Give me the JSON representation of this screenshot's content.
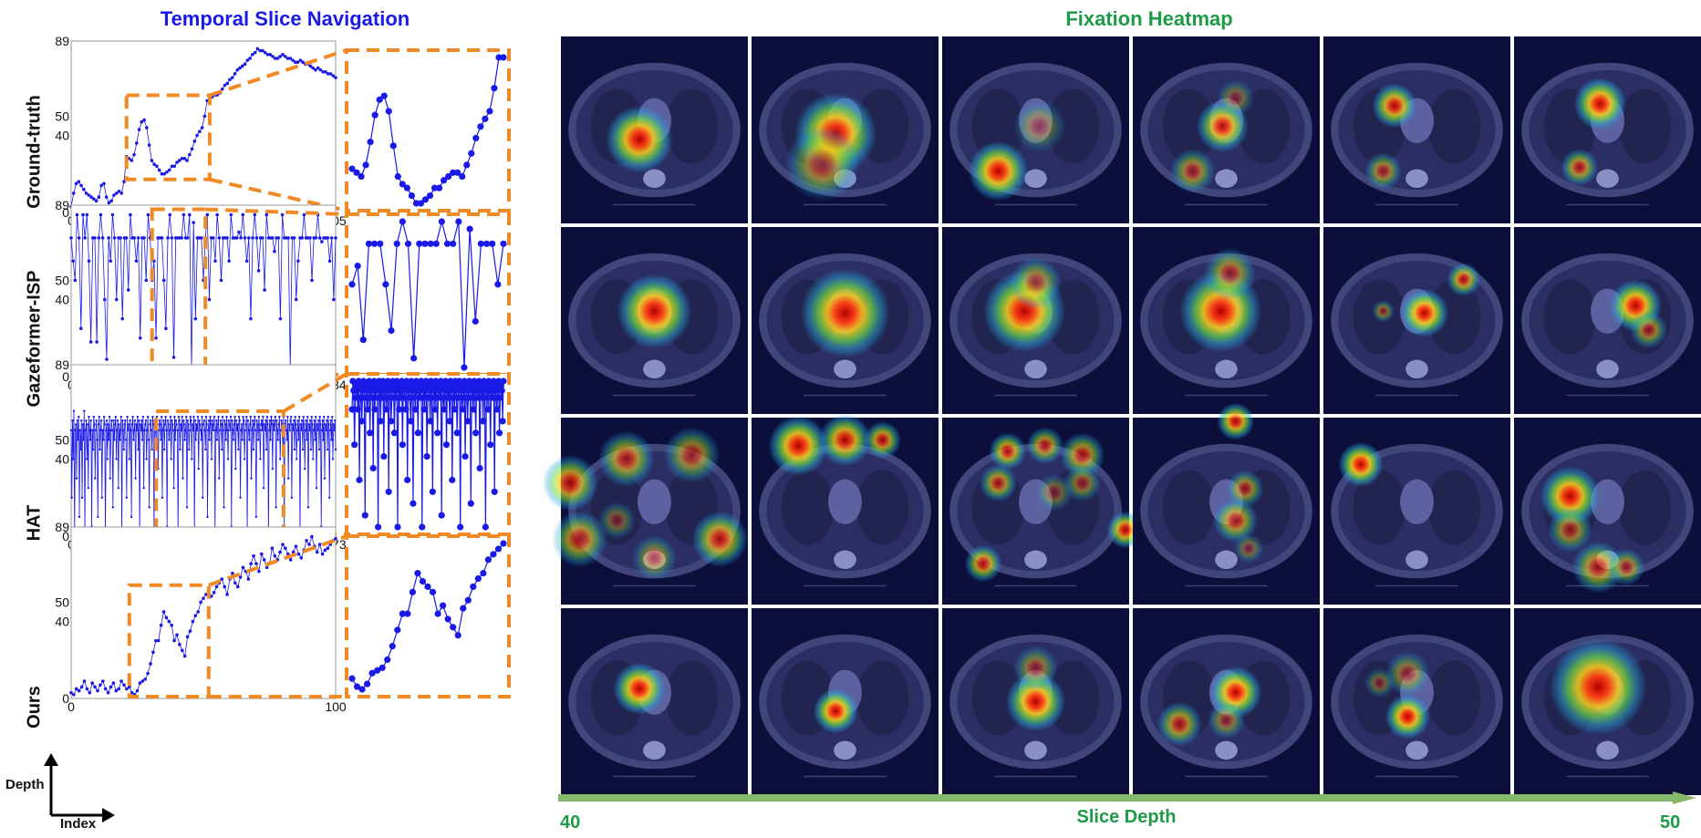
{
  "titles": {
    "left": "Temporal Slice Navigation",
    "right": "Fixation Heatmap"
  },
  "axis_corner": {
    "y_label": "Depth",
    "x_label": "Index"
  },
  "slice_depth": {
    "label": "Slice Depth",
    "start": "40",
    "end": "50"
  },
  "colors": {
    "title_left": "#1a1ae6",
    "title_right": "#1e9b46",
    "series": "#1a1ae6",
    "zoom_box": "#f08a24",
    "depth_arrow": "#86b86a",
    "ct_bg": "#0b0f3a"
  },
  "chart_data": [
    {
      "type": "line",
      "method": "Ground-truth",
      "yticks": [
        "0",
        "40",
        "50",
        "89"
      ],
      "xticks": [
        "0",
        "105"
      ],
      "ylim": [
        0,
        89
      ],
      "xlim": [
        0,
        105
      ],
      "zoom_range": [
        22,
        55
      ],
      "values": [
        3,
        10,
        15,
        16,
        14,
        12,
        10,
        9,
        8,
        7,
        6,
        8,
        14,
        15,
        8,
        5,
        6,
        9,
        10,
        11,
        10,
        16,
        29,
        28,
        27,
        30,
        36,
        43,
        47,
        48,
        44,
        35,
        27,
        25,
        24,
        22,
        20,
        20,
        21,
        22,
        24,
        24,
        26,
        27,
        28,
        28,
        27,
        30,
        33,
        37,
        40,
        42,
        44,
        50,
        58,
        58,
        60,
        61,
        61,
        62,
        64,
        66,
        67,
        69,
        70,
        72,
        74,
        75,
        76,
        77,
        79,
        80,
        82,
        83,
        85,
        84,
        84,
        83,
        82,
        82,
        81,
        80,
        80,
        81,
        82,
        81,
        80,
        80,
        79,
        78,
        78,
        79,
        78,
        77,
        77,
        76,
        75,
        74,
        75,
        74,
        73,
        73,
        72,
        72,
        71,
        70
      ]
    },
    {
      "type": "line",
      "method": "Gazeformer-ISP",
      "yticks": [
        "0",
        "40",
        "50",
        "89"
      ],
      "xticks": [
        "0",
        "134"
      ],
      "ylim": [
        0,
        89
      ],
      "xlim": [
        0,
        134
      ],
      "zoom_range": [
        41,
        68
      ],
      "values": [
        72,
        60,
        50,
        84,
        72,
        25,
        84,
        72,
        84,
        60,
        18,
        72,
        72,
        18,
        72,
        84,
        72,
        40,
        9,
        72,
        60,
        84,
        72,
        40,
        72,
        72,
        30,
        72,
        72,
        45,
        84,
        72,
        72,
        60,
        72,
        20,
        72,
        72,
        50,
        84,
        72,
        50,
        60,
        20,
        72,
        72,
        72,
        50,
        25,
        72,
        84,
        72,
        10,
        72,
        72,
        72,
        72,
        84,
        72,
        72,
        84,
        5,
        80,
        30,
        72,
        72,
        72,
        50,
        72,
        84,
        40,
        72,
        72,
        60,
        84,
        72,
        50,
        72,
        72,
        72,
        60,
        84,
        72,
        72,
        72,
        75,
        72,
        84,
        72,
        60,
        72,
        30,
        72,
        84,
        72,
        55,
        72,
        72,
        45,
        84,
        72,
        72,
        72,
        65,
        72,
        72,
        30,
        84,
        72,
        72,
        72,
        5,
        72,
        72,
        40,
        60,
        72,
        72,
        84,
        72,
        72,
        72,
        50,
        72,
        72,
        84,
        72,
        70,
        72,
        72,
        72,
        60,
        72,
        40,
        72
      ]
    },
    {
      "type": "line",
      "method": "HAT",
      "yticks": [
        "0",
        "40",
        "50",
        "89"
      ],
      "xticks": [
        "0",
        "373"
      ],
      "ylim": [
        0,
        89
      ],
      "xlim": [
        0,
        373
      ],
      "zoom_range": [
        120,
        300
      ],
      "values": [
        55,
        20,
        60,
        40,
        65,
        0,
        55,
        58,
        30,
        60,
        50,
        62,
        10,
        55,
        45,
        60,
        20,
        58,
        50,
        65,
        0,
        55,
        60,
        40,
        58,
        25,
        62,
        55,
        50,
        60,
        5,
        55,
        45,
        62,
        58,
        30,
        55,
        60,
        50,
        10,
        58,
        62,
        45,
        55,
        60,
        20,
        55,
        50,
        62,
        58,
        0,
        55,
        60,
        40,
        58,
        50,
        62,
        30,
        55,
        60,
        55,
        15,
        60,
        50,
        58,
        62,
        40,
        55,
        60,
        25,
        58,
        50,
        55,
        62,
        0,
        60,
        55,
        45,
        58,
        60,
        50,
        20,
        62,
        55,
        58,
        40,
        60,
        55,
        10,
        58,
        62,
        50,
        55,
        60,
        30,
        58,
        55,
        62,
        45,
        60,
        0,
        58,
        55,
        60,
        50,
        62,
        25,
        55,
        58,
        60,
        40,
        55,
        62,
        50,
        15,
        58,
        60,
        55,
        45,
        62,
        58,
        0,
        60,
        55,
        50,
        62,
        58,
        35,
        55,
        60,
        58,
        50,
        62,
        20,
        55,
        60,
        45,
        58,
        62,
        55,
        5,
        60,
        58,
        50,
        55,
        62,
        40,
        60,
        58,
        55,
        25,
        62,
        50,
        60,
        58,
        55,
        0,
        62,
        60,
        45,
        58,
        55,
        62,
        30,
        60,
        58,
        50,
        55,
        62,
        15,
        60,
        58,
        45,
        55,
        62,
        60,
        40,
        58,
        55,
        62,
        0,
        60,
        50,
        58,
        55,
        62,
        35,
        60,
        58,
        55,
        50,
        62,
        20,
        58,
        60,
        55,
        45,
        62,
        58,
        10,
        55,
        60,
        50,
        62,
        58,
        40,
        60,
        55,
        58,
        62,
        0,
        55,
        60,
        50,
        58,
        62,
        30,
        55,
        60,
        58,
        45,
        62,
        55,
        15,
        60,
        58,
        50,
        62,
        55,
        40,
        60,
        58,
        55,
        62,
        5,
        60,
        55,
        50,
        58,
        62,
        35,
        60,
        55,
        58,
        45,
        62,
        60,
        20,
        55,
        58,
        50,
        62,
        60,
        40,
        55,
        58,
        62,
        0,
        60,
        55,
        50,
        58,
        62,
        30,
        55,
        60,
        45,
        58,
        62,
        55,
        10,
        60,
        58,
        50,
        62,
        55,
        40,
        58,
        60,
        55,
        62,
        25,
        58,
        55,
        60,
        45,
        62,
        58,
        0,
        55,
        60,
        50,
        62,
        58,
        35,
        60,
        55,
        58,
        62,
        15,
        60,
        55,
        50,
        58,
        62,
        40,
        55,
        60,
        58,
        45,
        62,
        5,
        58,
        60,
        55,
        50,
        62,
        30,
        58,
        55,
        60,
        62,
        20,
        58,
        55,
        60,
        45,
        62,
        58,
        40,
        55,
        60,
        50,
        62,
        0,
        58,
        55,
        60,
        45,
        62,
        58,
        35,
        55,
        60,
        50,
        62,
        15,
        58,
        55,
        60,
        45,
        62,
        58,
        40,
        55,
        60,
        50,
        62,
        25,
        58,
        55,
        60,
        45,
        62,
        58,
        5,
        55,
        60,
        50,
        62,
        30,
        58,
        55,
        60,
        45,
        62,
        58,
        20,
        55,
        60,
        50,
        62,
        40,
        58,
        55,
        60,
        45
      ]
    },
    {
      "type": "line",
      "method": "Ours",
      "yticks": [
        "0",
        "40",
        "50",
        "89"
      ],
      "xticks": [
        "0",
        "100"
      ],
      "ylim": [
        0,
        89
      ],
      "xlim": [
        0,
        100
      ],
      "zoom_range": [
        22,
        52
      ],
      "values": [
        3,
        2,
        5,
        4,
        6,
        9,
        5,
        3,
        8,
        6,
        4,
        7,
        9,
        5,
        3,
        6,
        8,
        4,
        5,
        9,
        7,
        5,
        6,
        3,
        2,
        4,
        8,
        9,
        10,
        13,
        18,
        24,
        30,
        30,
        38,
        45,
        42,
        40,
        38,
        30,
        33,
        28,
        25,
        22,
        32,
        35,
        40,
        43,
        45,
        50,
        52,
        54,
        56,
        53,
        55,
        58,
        60,
        62,
        58,
        54,
        62,
        65,
        60,
        58,
        63,
        68,
        66,
        62,
        70,
        74,
        70,
        66,
        75,
        72,
        68,
        70,
        78,
        74,
        72,
        76,
        80,
        78,
        75,
        72,
        76,
        79,
        75,
        73,
        77,
        82,
        80,
        84,
        79,
        76,
        80,
        75,
        77,
        78,
        80,
        82,
        83
      ]
    }
  ],
  "heatmap_grid": {
    "rows": 4,
    "cols": 6,
    "cells": [
      [
        {
          "b": [
            [
              0.42,
              0.55,
              0.18,
              1
            ]
          ]
        },
        {
          "b": [
            [
              0.45,
              0.52,
              0.22,
              1
            ],
            [
              0.38,
              0.68,
              0.2,
              0.6
            ]
          ]
        },
        {
          "b": [
            [
              0.3,
              0.72,
              0.16,
              1
            ],
            [
              0.52,
              0.48,
              0.14,
              0.4
            ]
          ]
        },
        {
          "b": [
            [
              0.48,
              0.48,
              0.14,
              0.9
            ],
            [
              0.32,
              0.72,
              0.12,
              0.6
            ],
            [
              0.55,
              0.33,
              0.1,
              0.4
            ]
          ]
        },
        {
          "b": [
            [
              0.38,
              0.37,
              0.12,
              0.9
            ],
            [
              0.32,
              0.72,
              0.1,
              0.6
            ]
          ]
        },
        {
          "b": [
            [
              0.46,
              0.36,
              0.14,
              1
            ],
            [
              0.35,
              0.7,
              0.1,
              0.7
            ]
          ]
        }
      ],
      [
        {
          "b": [
            [
              0.5,
              0.45,
              0.2,
              1
            ]
          ]
        },
        {
          "b": [
            [
              0.5,
              0.46,
              0.24,
              1
            ]
          ]
        },
        {
          "b": [
            [
              0.44,
              0.45,
              0.22,
              1
            ],
            [
              0.5,
              0.3,
              0.14,
              0.6
            ]
          ]
        },
        {
          "b": [
            [
              0.47,
              0.45,
              0.22,
              1
            ],
            [
              0.52,
              0.25,
              0.14,
              0.6
            ]
          ]
        },
        {
          "b": [
            [
              0.54,
              0.46,
              0.13,
              1
            ],
            [
              0.75,
              0.28,
              0.09,
              0.8
            ],
            [
              0.32,
              0.45,
              0.06,
              0.5
            ]
          ]
        },
        {
          "b": [
            [
              0.65,
              0.42,
              0.14,
              1
            ],
            [
              0.72,
              0.55,
              0.1,
              0.6
            ]
          ]
        }
      ],
      [
        {
          "b": [
            [
              0.05,
              0.35,
              0.15,
              0.8
            ],
            [
              0.35,
              0.22,
              0.15,
              0.7
            ],
            [
              0.7,
              0.2,
              0.15,
              0.6
            ],
            [
              0.1,
              0.65,
              0.15,
              0.7
            ],
            [
              0.85,
              0.65,
              0.15,
              0.8
            ],
            [
              0.5,
              0.75,
              0.12,
              0.5
            ],
            [
              0.3,
              0.55,
              0.1,
              0.4
            ]
          ]
        },
        {
          "b": [
            [
              0.25,
              0.15,
              0.16,
              1
            ],
            [
              0.5,
              0.12,
              0.14,
              0.9
            ],
            [
              0.7,
              0.12,
              0.1,
              0.8
            ]
          ]
        },
        {
          "b": [
            [
              0.35,
              0.18,
              0.1,
              0.8
            ],
            [
              0.55,
              0.15,
              0.1,
              0.7
            ],
            [
              0.75,
              0.2,
              0.12,
              0.7
            ],
            [
              0.3,
              0.35,
              0.1,
              0.7
            ],
            [
              0.75,
              0.35,
              0.1,
              0.5
            ],
            [
              0.98,
              0.6,
              0.1,
              0.9
            ],
            [
              0.22,
              0.78,
              0.1,
              0.8
            ],
            [
              0.6,
              0.4,
              0.1,
              0.4
            ]
          ]
        },
        {
          "b": [
            [
              0.55,
              0.02,
              0.1,
              0.9
            ],
            [
              0.6,
              0.38,
              0.1,
              0.6
            ],
            [
              0.55,
              0.55,
              0.12,
              0.7
            ],
            [
              0.62,
              0.7,
              0.08,
              0.4
            ]
          ]
        },
        {
          "b": [
            [
              0.2,
              0.25,
              0.12,
              1
            ]
          ]
        },
        {
          "b": [
            [
              0.3,
              0.42,
              0.16,
              1
            ],
            [
              0.3,
              0.6,
              0.12,
              0.6
            ],
            [
              0.45,
              0.8,
              0.14,
              0.7
            ],
            [
              0.6,
              0.8,
              0.1,
              0.6
            ]
          ]
        }
      ],
      [
        {
          "b": [
            [
              0.42,
              0.43,
              0.14,
              1
            ]
          ]
        },
        {
          "b": [
            [
              0.45,
              0.55,
              0.12,
              1
            ]
          ]
        },
        {
          "b": [
            [
              0.5,
              0.5,
              0.16,
              1
            ],
            [
              0.5,
              0.32,
              0.12,
              0.5
            ]
          ]
        },
        {
          "b": [
            [
              0.55,
              0.45,
              0.14,
              1
            ],
            [
              0.25,
              0.62,
              0.12,
              0.7
            ],
            [
              0.5,
              0.6,
              0.1,
              0.5
            ]
          ]
        },
        {
          "b": [
            [
              0.45,
              0.58,
              0.12,
              1
            ],
            [
              0.45,
              0.35,
              0.12,
              0.5
            ],
            [
              0.3,
              0.4,
              0.08,
              0.4
            ]
          ]
        },
        {
          "b": [
            [
              0.45,
              0.42,
              0.26,
              1
            ]
          ]
        }
      ]
    ]
  }
}
